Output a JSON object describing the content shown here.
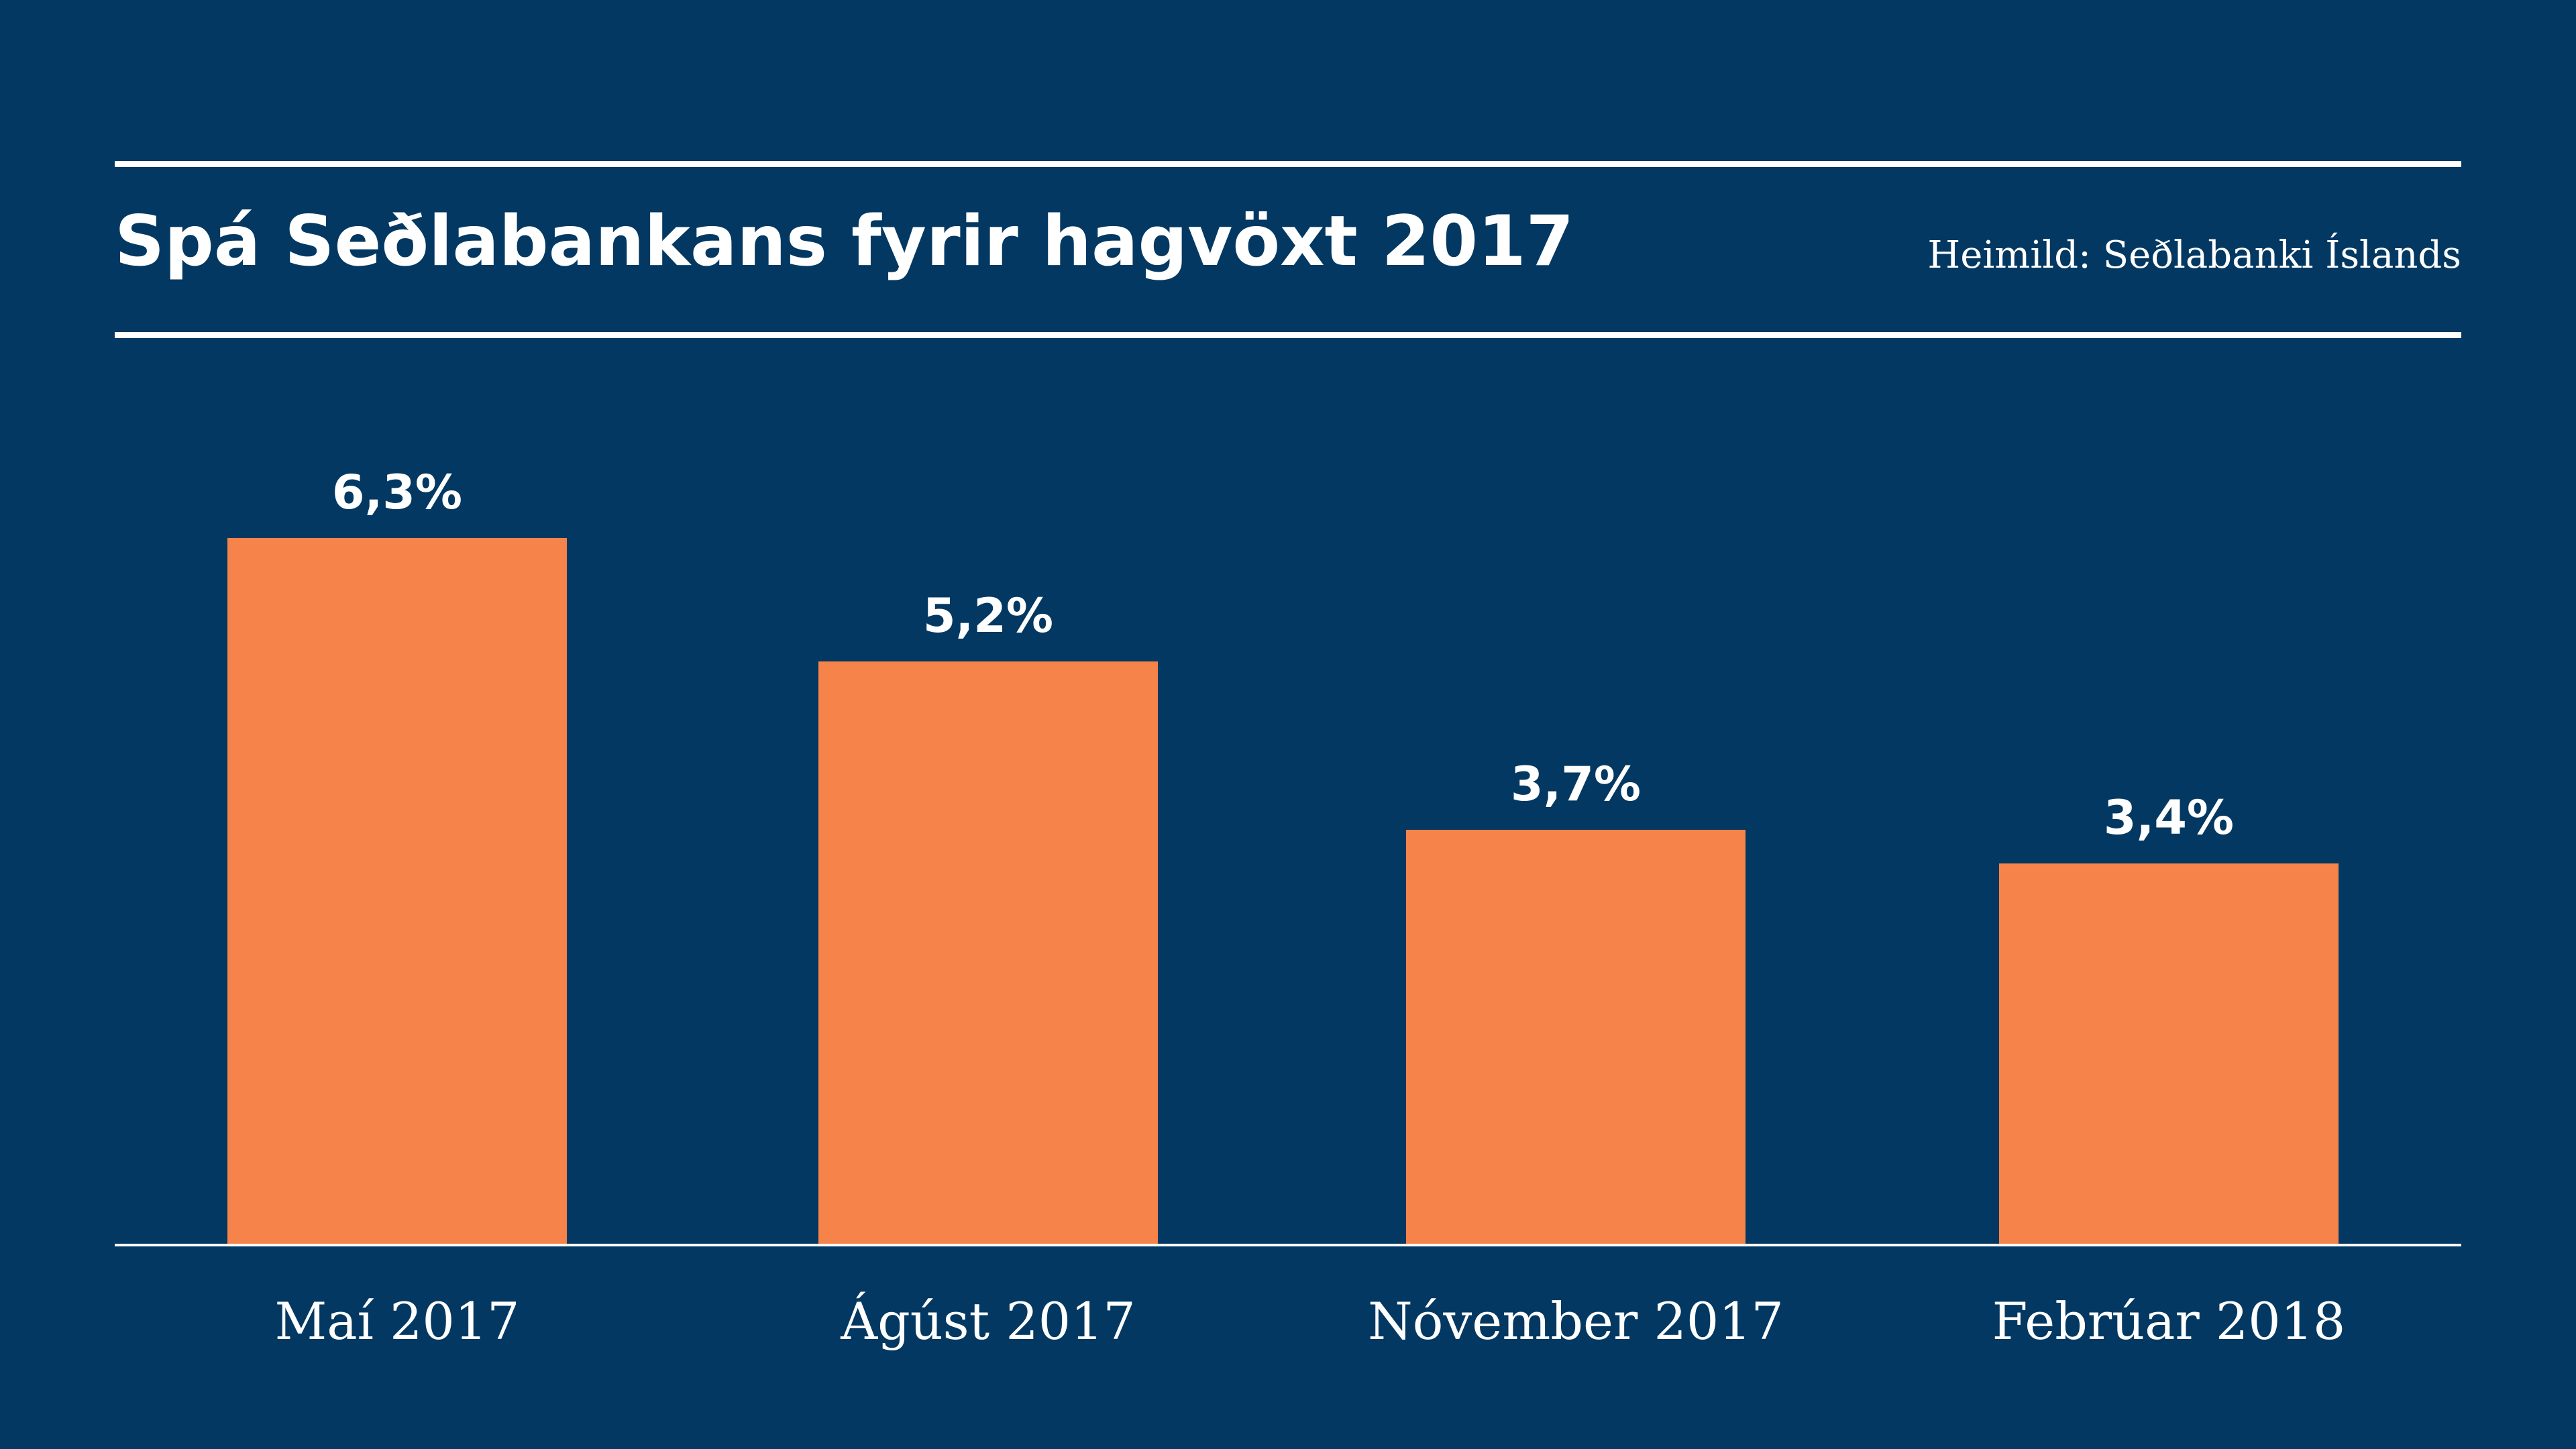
{
  "header": {
    "title": "Spá Seðlabankans fyrir hagvöxt 2017",
    "source": "Heimild: Seðlabanki Íslands"
  },
  "colors": {
    "background": "#023861",
    "bar": "#F5834A",
    "text": "#FFFFFF",
    "rules": "#FFFFFF"
  },
  "chart_data": {
    "type": "bar",
    "title": "Spá Seðlabankans fyrir hagvöxt 2017",
    "source": "Heimild: Seðlabanki Íslands",
    "categories": [
      "Maí 2017",
      "Ágúst 2017",
      "Nóvember 2017",
      "Febrúar 2018"
    ],
    "values": [
      6.3,
      5.2,
      3.7,
      3.4
    ],
    "value_labels": [
      "6,3%",
      "5,2%",
      "3,7%",
      "3,4%"
    ],
    "xlabel": "",
    "ylabel": "",
    "ylim": [
      0,
      6.3
    ],
    "grid": false,
    "legend": "none"
  }
}
